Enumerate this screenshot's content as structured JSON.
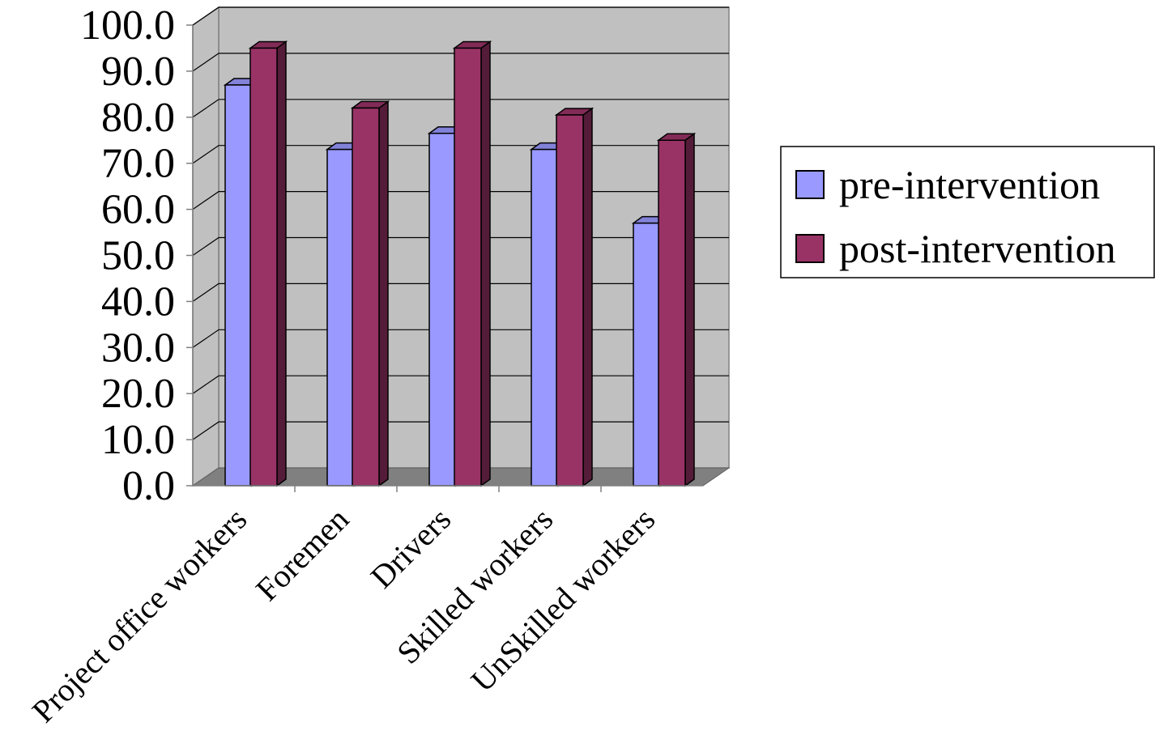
{
  "chart_data": {
    "type": "bar",
    "categories": [
      "Project office workers",
      "Foremen",
      "Drivers",
      "Skilled workers",
      "UnSkilled workers"
    ],
    "series": [
      {
        "name": "pre-intervention",
        "values": [
          87.0,
          73.0,
          76.5,
          73.0,
          57.0
        ],
        "color": "#9999ff"
      },
      {
        "name": "post-intervention",
        "values": [
          95.0,
          82.0,
          95.0,
          80.5,
          75.0
        ],
        "color": "#993366"
      }
    ],
    "ylim": [
      0,
      100
    ],
    "yticks": [
      "0.0",
      "10.0",
      "20.0",
      "30.0",
      "40.0",
      "50.0",
      "60.0",
      "70.0",
      "80.0",
      "90.0",
      "100.0"
    ],
    "grid": true,
    "style": "3d-clustered-column",
    "legend_position": "right",
    "title": "",
    "xlabel": "",
    "ylabel": ""
  }
}
